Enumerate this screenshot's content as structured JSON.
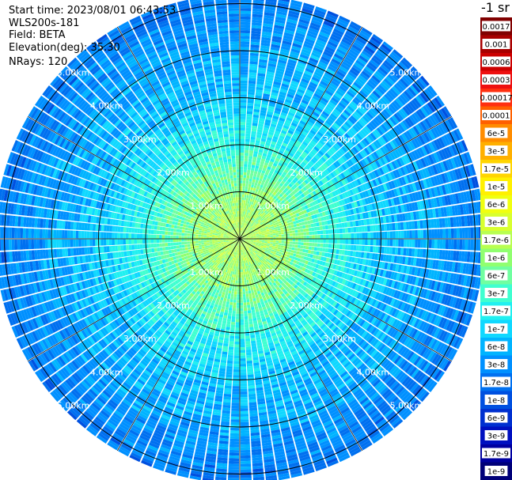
{
  "header": {
    "start_time": "Start time: 2023/08/01 06:43:53",
    "instrument": "WLS200s-181",
    "field": "Field: BETA",
    "elevation": "Elevation(deg): 35.30",
    "nrays": "NRays: 120"
  },
  "colorbar": {
    "units": "-1 sr",
    "labels": [
      "0.0017",
      "0.001",
      "0.0006",
      "0.0003",
      "0.00017",
      "0.0001",
      "6e-5",
      "3e-5",
      "1.7e-5",
      "1e-5",
      "6e-6",
      "3e-6",
      "1.7e-6",
      "1e-6",
      "6e-7",
      "3e-7",
      "1.7e-7",
      "1e-7",
      "6e-8",
      "3e-8",
      "1.7e-8",
      "1e-8",
      "6e-9",
      "3e-9",
      "1.7e-9",
      "1e-9"
    ],
    "colors": [
      "#800000",
      "#a80000",
      "#cc0000",
      "#ee1010",
      "#ff3010",
      "#ff6000",
      "#ff8c00",
      "#ffb000",
      "#ffd500",
      "#fff000",
      "#f0ff10",
      "#d8ff30",
      "#b8ff50",
      "#90ff70",
      "#70ffa0",
      "#40ffd0",
      "#20f0f0",
      "#10d8ff",
      "#00b4ff",
      "#0090ff",
      "#0070f0",
      "#0050e0",
      "#0030d0",
      "#0010c0",
      "#0000a0",
      "#000078"
    ]
  },
  "chart_data": {
    "type": "heatmap",
    "projection": "polar (PPI scan)",
    "field": "BETA",
    "n_rays": 120,
    "elevation_deg": 35.3,
    "range_km": [
      0,
      5.2
    ],
    "range_rings_km": [
      1,
      2,
      3,
      4,
      5
    ],
    "range_ring_labels": [
      "1.00km",
      "2.00km",
      "3.00km",
      "4.00km",
      "5.00km"
    ],
    "azimuth_spokes_deg": [
      0,
      30,
      60,
      90,
      120,
      150,
      180,
      210,
      240,
      270,
      300,
      330
    ],
    "color_scale": "log",
    "value_range": [
      1e-09,
      0.0017
    ],
    "radial_profile": [
      {
        "range_km": 0.0,
        "beta": 2e-06
      },
      {
        "range_km": 0.5,
        "beta": 1.7e-06
      },
      {
        "range_km": 1.0,
        "beta": 1.2e-06
      },
      {
        "range_km": 1.5,
        "beta": 6e-07
      },
      {
        "range_km": 2.0,
        "beta": 3e-07
      },
      {
        "range_km": 2.5,
        "beta": 1.7e-07
      },
      {
        "range_km": 3.0,
        "beta": 1e-07
      },
      {
        "range_km": 4.0,
        "beta": 6e-08
      },
      {
        "range_km": 5.0,
        "beta": 3e-08
      }
    ]
  }
}
